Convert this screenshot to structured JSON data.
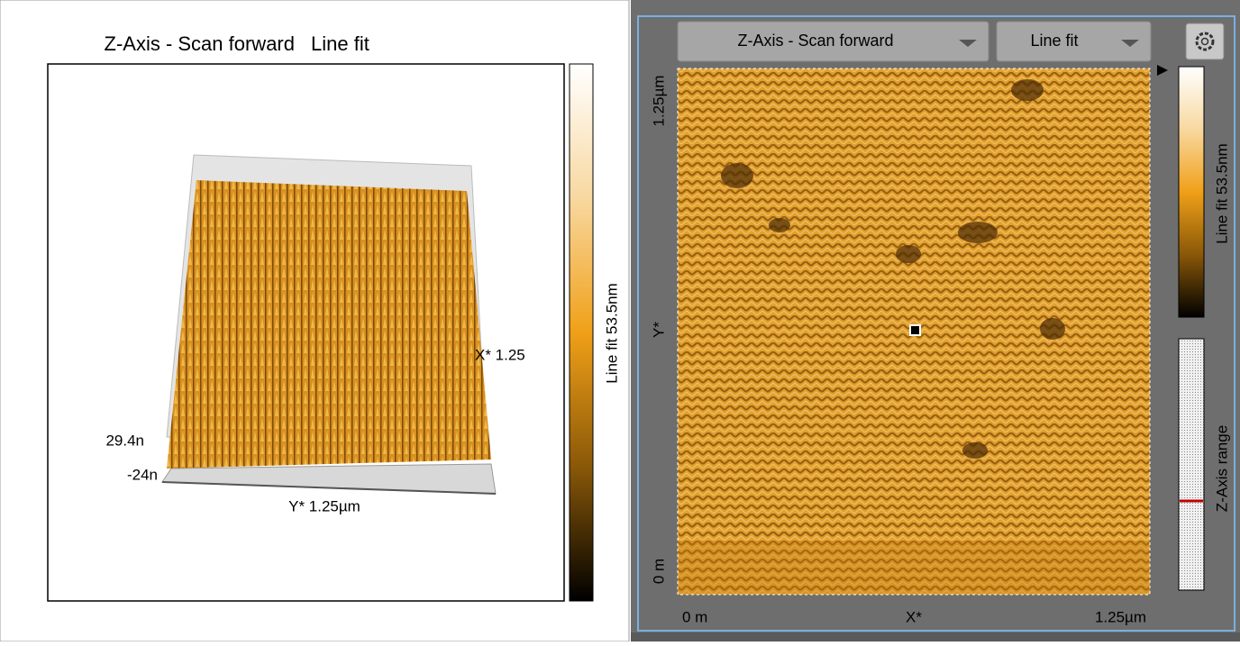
{
  "left_panel": {
    "title": "Z-Axis - Scan forward",
    "title_channel": "Line fit",
    "colorbar_label": "Line fit 53.5nm",
    "z_max_label": "29.4n",
    "z_min_label": "-24n",
    "y_axis_label": "Y* 1.25µm",
    "x_axis_label": "X* 1.25"
  },
  "right_panel": {
    "channel_dropdown": "Z-Axis - Scan forward",
    "filter_dropdown": "Line fit",
    "y_labels": [
      "1.25µm",
      "Y*",
      "0 m"
    ],
    "x_labels": [
      "0 m",
      "X*",
      "1.25µm"
    ],
    "colorbar_label": "Line fit 53.5nm",
    "range_label": "Z-Axis range"
  }
}
